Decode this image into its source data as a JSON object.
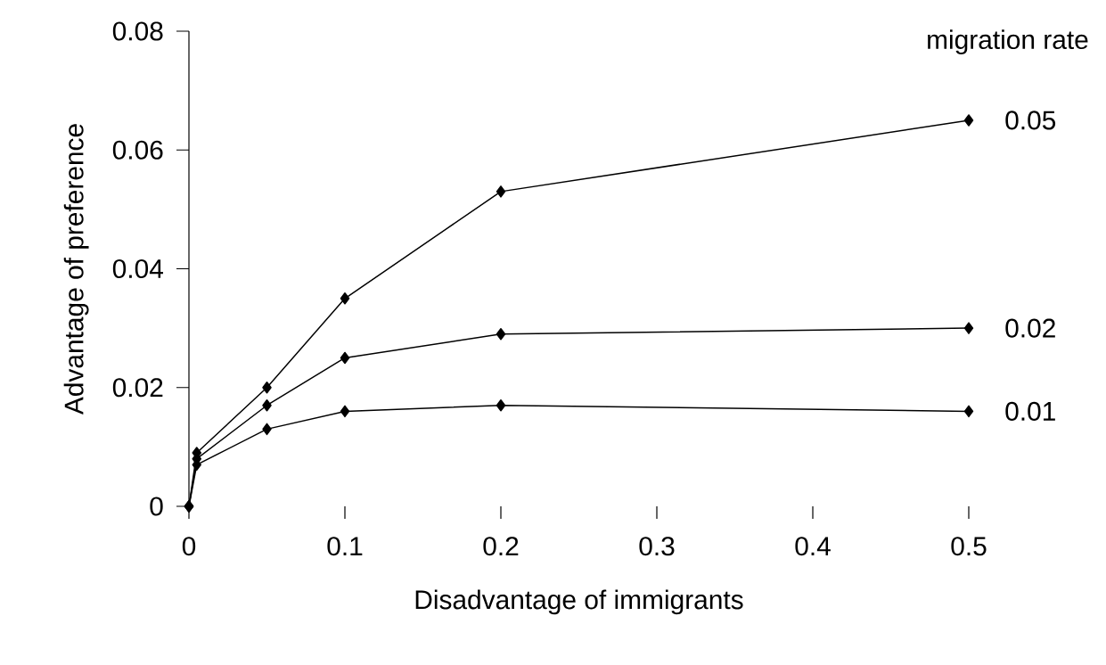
{
  "chart_data": {
    "type": "line",
    "xlabel": "Disadvantage of immigrants",
    "ylabel": "Advantage of preference",
    "legend_title": "migration rate",
    "x": [
      0,
      0.005,
      0.05,
      0.1,
      0.2,
      0.5
    ],
    "series": [
      {
        "name": "0.05",
        "color": "#000000",
        "values": [
          0,
          0.009,
          0.02,
          0.035,
          0.053,
          0.065
        ]
      },
      {
        "name": "0.02",
        "color": "#000000",
        "values": [
          0,
          0.008,
          0.017,
          0.025,
          0.029,
          0.03
        ]
      },
      {
        "name": "0.01",
        "color": "#000000",
        "values": [
          0,
          0.007,
          0.013,
          0.016,
          0.017,
          0.016
        ]
      }
    ],
    "xlim": [
      0,
      0.5
    ],
    "xticks": [
      0,
      0.1,
      0.2,
      0.3,
      0.4,
      0.5
    ],
    "ylim": [
      0,
      0.08
    ],
    "yticks": [
      0,
      0.02,
      0.04,
      0.06,
      0.08
    ],
    "grid": false,
    "marker": "diamond",
    "line_style": "solid"
  }
}
